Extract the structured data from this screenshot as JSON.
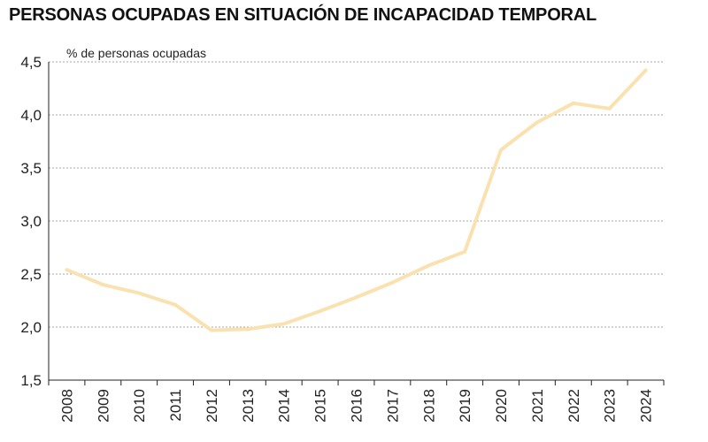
{
  "chart_data": {
    "type": "line",
    "title": "PERSONAS OCUPADAS EN SITUACIÓN DE INCAPACIDAD TEMPORAL",
    "ylabel": "% de personas ocupadas",
    "xlabel": "",
    "categories": [
      "2008",
      "2009",
      "2010",
      "2011",
      "2012",
      "2013",
      "2014",
      "2015",
      "2016",
      "2017",
      "2018",
      "2019",
      "2020",
      "2021",
      "2022",
      "2023",
      "2024"
    ],
    "series": [
      {
        "values": [
          2.54,
          2.4,
          2.32,
          2.21,
          1.97,
          1.98,
          2.03,
          2.15,
          2.28,
          2.42,
          2.58,
          2.71,
          3.67,
          3.93,
          4.11,
          4.06,
          4.42
        ],
        "color": "#fae2b0"
      }
    ],
    "ylim": [
      1.5,
      4.5
    ],
    "yticks": [
      "1,5",
      "2,0",
      "2,5",
      "3,0",
      "3,5",
      "4,0",
      "4,5"
    ],
    "grid": true,
    "legend": "none",
    "colors": {
      "line": "#fae2b0",
      "grid": "#8a8a8a",
      "axis": "#222222",
      "title": "#111111"
    }
  }
}
